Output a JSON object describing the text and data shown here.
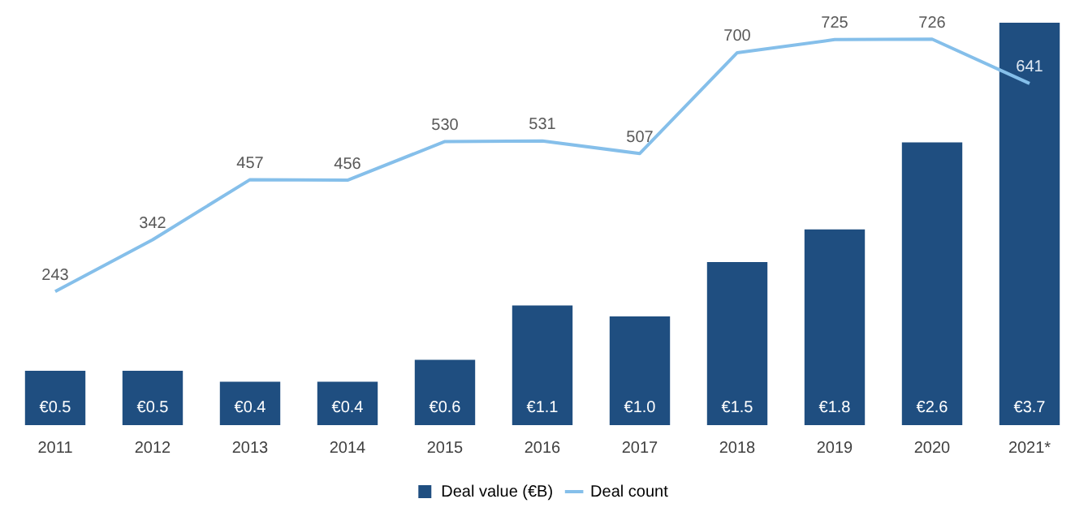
{
  "chart_data": {
    "type": "bar",
    "categories": [
      "2011",
      "2012",
      "2013",
      "2014",
      "2015",
      "2016",
      "2017",
      "2018",
      "2019",
      "2020",
      "2021*"
    ],
    "series": [
      {
        "name": "Deal value (€B)",
        "color": "#1f4e80",
        "values": [
          0.5,
          0.5,
          0.4,
          0.4,
          0.6,
          1.1,
          1.0,
          1.5,
          1.8,
          2.6,
          3.7
        ],
        "value_labels": [
          "€0.5",
          "€0.5",
          "€0.4",
          "€0.4",
          "€0.6",
          "€1.1",
          "€1.0",
          "€1.5",
          "€1.8",
          "€2.6",
          "€3.7"
        ]
      },
      {
        "name": "Deal count",
        "type": "line",
        "axis": "y2",
        "color": "#85bfea",
        "values": [
          243,
          342,
          457,
          456,
          530,
          531,
          507,
          700,
          725,
          726,
          641
        ],
        "value_labels": [
          "243",
          "342",
          "457",
          "456",
          "530",
          "531",
          "507",
          "700",
          "725",
          "726",
          "641"
        ]
      }
    ],
    "legend": "bottom",
    "grid": false,
    "marker": "none"
  }
}
